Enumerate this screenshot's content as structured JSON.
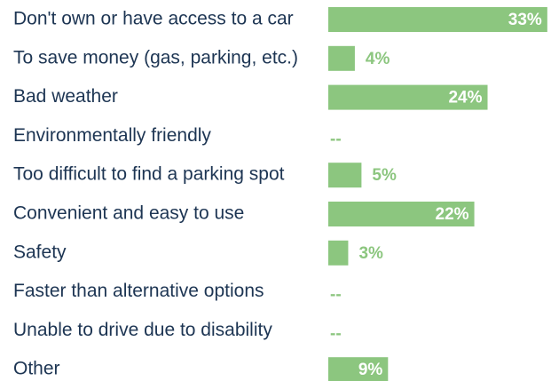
{
  "chart_data": {
    "type": "bar",
    "orientation": "horizontal",
    "categories": [
      "Don't own or have access to a car",
      "To save money (gas, parking, etc.)",
      "Bad weather",
      "Environmentally friendly",
      "Too difficult to find a parking spot",
      "Convenient and easy to use",
      "Safety",
      "Faster than alternative options",
      "Unable to drive due to disability",
      "Other"
    ],
    "values": [
      33,
      4,
      24,
      null,
      5,
      22,
      3,
      null,
      null,
      9
    ],
    "value_labels": [
      "33%",
      "4%",
      "24%",
      "--",
      "5%",
      "22%",
      "3%",
      "--",
      "--",
      "9%"
    ],
    "color": "#8cc67f"
  }
}
